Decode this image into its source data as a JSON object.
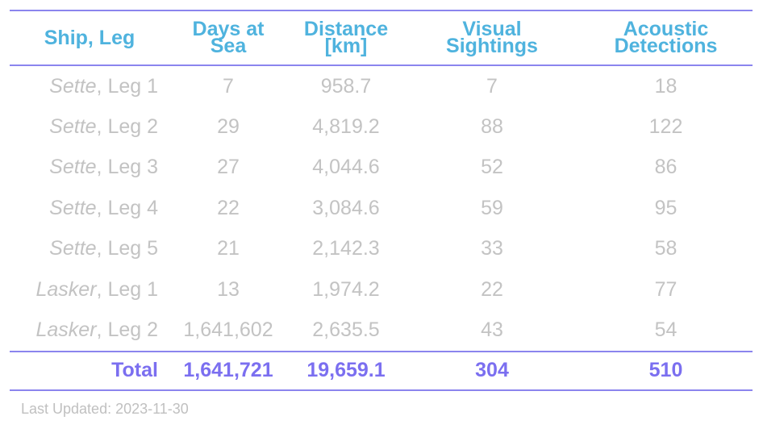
{
  "table": {
    "headers": [
      {
        "line1": "Ship, Leg",
        "line2": ""
      },
      {
        "line1": "Days at",
        "line2": "Sea"
      },
      {
        "line1": "Distance",
        "line2": "[km]"
      },
      {
        "line1": "Visual",
        "line2": "Sightings"
      },
      {
        "line1": "Acoustic",
        "line2": "Detections"
      }
    ],
    "rows": [
      {
        "ship": "Sette",
        "leg": ", Leg 1",
        "days": "7",
        "distance": "958.7",
        "visual": "7",
        "acoustic": "18"
      },
      {
        "ship": "Sette",
        "leg": ", Leg 2",
        "days": "29",
        "distance": "4,819.2",
        "visual": "88",
        "acoustic": "122"
      },
      {
        "ship": "Sette",
        "leg": ", Leg 3",
        "days": "27",
        "distance": "4,044.6",
        "visual": "52",
        "acoustic": "86"
      },
      {
        "ship": "Sette",
        "leg": ", Leg 4",
        "days": "22",
        "distance": "3,084.6",
        "visual": "59",
        "acoustic": "95"
      },
      {
        "ship": "Sette",
        "leg": ", Leg 5",
        "days": "21",
        "distance": "2,142.3",
        "visual": "33",
        "acoustic": "58"
      },
      {
        "ship": "Lasker",
        "leg": ", Leg 1",
        "days": "13",
        "distance": "1,974.2",
        "visual": "22",
        "acoustic": "77"
      },
      {
        "ship": "Lasker",
        "leg": ", Leg 2",
        "days": "1,641,602",
        "distance": "2,635.5",
        "visual": "43",
        "acoustic": "54"
      }
    ],
    "total": {
      "label": "Total",
      "days": "1,641,721",
      "distance": "19,659.1",
      "visual": "304",
      "acoustic": "510"
    }
  },
  "footer": {
    "last_updated": "Last Updated: 2023-11-30"
  },
  "colors": {
    "header_text": "#4fb3de",
    "rule": "#8b85ee",
    "body_text": "#c3c3c3",
    "total_text": "#7b6ff0",
    "note_text": "#c0c0c0"
  }
}
